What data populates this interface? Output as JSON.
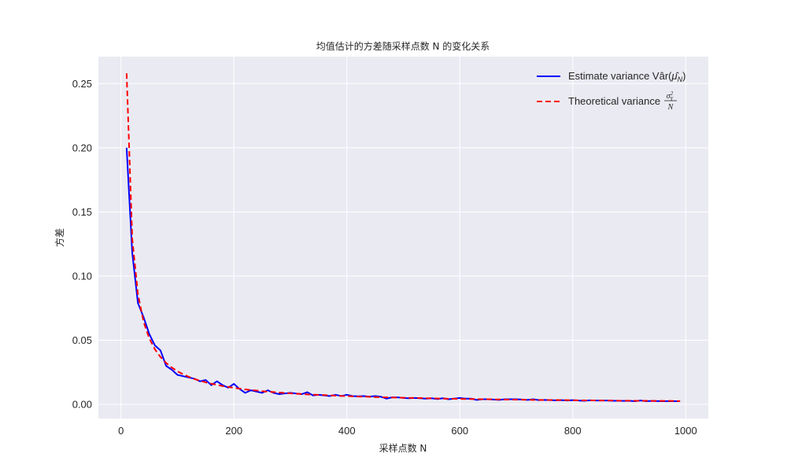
{
  "chart_data": {
    "type": "line",
    "title": "均值估计的方差随采样点数 N 的变化关系",
    "xlabel": "采样点数 N",
    "ylabel": "方差",
    "xlim": [
      -40,
      1040
    ],
    "ylim": [
      -0.011,
      0.271
    ],
    "x_ticks": [
      0,
      200,
      400,
      600,
      800,
      1000
    ],
    "x_tick_labels": [
      "0",
      "200",
      "400",
      "600",
      "800",
      "1000"
    ],
    "y_ticks": [
      0.0,
      0.05,
      0.1,
      0.15,
      0.2,
      0.25
    ],
    "y_tick_labels": [
      "0.00",
      "0.05",
      "0.10",
      "0.15",
      "0.20",
      "0.25"
    ],
    "grid": true,
    "legend_position": "top-right",
    "colors": {
      "background": "#eaeaf2",
      "grid": "#ffffff",
      "estimate": "#0000ff",
      "theoretical": "#ff0000"
    },
    "series": [
      {
        "name": "Estimate variance Var̂(μ̂_N)",
        "style": "solid",
        "color": "#0000ff",
        "x": [
          10,
          20,
          30,
          40,
          50,
          60,
          70,
          80,
          90,
          100,
          110,
          120,
          130,
          140,
          150,
          160,
          170,
          180,
          190,
          200,
          210,
          220,
          230,
          240,
          250,
          260,
          270,
          280,
          290,
          300,
          310,
          320,
          330,
          340,
          350,
          360,
          370,
          380,
          390,
          400,
          410,
          420,
          430,
          440,
          450,
          460,
          470,
          480,
          490,
          500,
          510,
          520,
          530,
          540,
          550,
          560,
          570,
          580,
          590,
          600,
          610,
          620,
          630,
          640,
          650,
          660,
          670,
          680,
          690,
          700,
          710,
          720,
          730,
          740,
          750,
          760,
          770,
          780,
          790,
          800,
          810,
          820,
          830,
          840,
          850,
          860,
          870,
          880,
          890,
          900,
          910,
          920,
          930,
          940,
          950,
          960,
          970,
          980,
          990
        ],
        "y": [
          0.2,
          0.118,
          0.079,
          0.068,
          0.055,
          0.046,
          0.042,
          0.03,
          0.027,
          0.023,
          0.022,
          0.021,
          0.02,
          0.018,
          0.019,
          0.015,
          0.018,
          0.015,
          0.013,
          0.016,
          0.012,
          0.009,
          0.011,
          0.01,
          0.009,
          0.011,
          0.009,
          0.008,
          0.0085,
          0.009,
          0.0085,
          0.008,
          0.0095,
          0.007,
          0.0075,
          0.007,
          0.0065,
          0.0075,
          0.0065,
          0.0075,
          0.0065,
          0.0063,
          0.0065,
          0.006,
          0.0065,
          0.006,
          0.0045,
          0.0055,
          0.0055,
          0.005,
          0.0048,
          0.005,
          0.0048,
          0.0045,
          0.0048,
          0.0042,
          0.0048,
          0.004,
          0.0045,
          0.005,
          0.0045,
          0.0045,
          0.0035,
          0.004,
          0.004,
          0.0038,
          0.0035,
          0.004,
          0.004,
          0.004,
          0.0038,
          0.0035,
          0.004,
          0.0033,
          0.0035,
          0.0033,
          0.0032,
          0.0033,
          0.003,
          0.0033,
          0.003,
          0.0028,
          0.0032,
          0.003,
          0.003,
          0.003,
          0.0028,
          0.0028,
          0.0027,
          0.0028,
          0.0025,
          0.003,
          0.0025,
          0.0027,
          0.0026,
          0.0025,
          0.0025,
          0.0025,
          0.0025
        ]
      },
      {
        "name": "Theoretical variance σ²_Y / N",
        "style": "dashed",
        "color": "#ff0000",
        "x": [
          10,
          20,
          30,
          40,
          50,
          60,
          70,
          80,
          90,
          100,
          110,
          120,
          130,
          140,
          150,
          160,
          170,
          180,
          190,
          200,
          210,
          220,
          230,
          240,
          250,
          260,
          270,
          280,
          290,
          300,
          310,
          320,
          330,
          340,
          350,
          360,
          370,
          380,
          390,
          400,
          410,
          420,
          430,
          440,
          450,
          460,
          470,
          480,
          490,
          500,
          510,
          520,
          530,
          540,
          550,
          560,
          570,
          580,
          590,
          600,
          610,
          620,
          630,
          640,
          650,
          660,
          670,
          680,
          690,
          700,
          710,
          720,
          730,
          740,
          750,
          760,
          770,
          780,
          790,
          800,
          810,
          820,
          830,
          840,
          850,
          860,
          870,
          880,
          890,
          900,
          910,
          920,
          930,
          940,
          950,
          960,
          970,
          980,
          990
        ],
        "y": [
          0.258,
          0.129,
          0.086,
          0.0645,
          0.0516,
          0.043,
          0.0369,
          0.0323,
          0.0287,
          0.0258,
          0.0235,
          0.0215,
          0.0198,
          0.0184,
          0.0172,
          0.0161,
          0.0152,
          0.0143,
          0.0136,
          0.0129,
          0.0123,
          0.0117,
          0.0112,
          0.0108,
          0.0103,
          0.0099,
          0.0096,
          0.0092,
          0.0089,
          0.0086,
          0.0083,
          0.0081,
          0.0078,
          0.0076,
          0.0074,
          0.0072,
          0.007,
          0.0068,
          0.0066,
          0.0065,
          0.0063,
          0.0061,
          0.006,
          0.0059,
          0.0057,
          0.0056,
          0.0055,
          0.0054,
          0.0053,
          0.0052,
          0.0051,
          0.005,
          0.0049,
          0.0048,
          0.0047,
          0.0046,
          0.0045,
          0.0044,
          0.0044,
          0.0043,
          0.0042,
          0.0042,
          0.0041,
          0.004,
          0.004,
          0.0039,
          0.0039,
          0.0038,
          0.0037,
          0.0037,
          0.0036,
          0.0036,
          0.0035,
          0.0035,
          0.0034,
          0.0034,
          0.0034,
          0.0033,
          0.0033,
          0.0032,
          0.0032,
          0.0031,
          0.0031,
          0.0031,
          0.003,
          0.003,
          0.003,
          0.0029,
          0.0029,
          0.0029,
          0.0028,
          0.0028,
          0.0028,
          0.0027,
          0.0027,
          0.0027,
          0.0027,
          0.0026,
          0.0026
        ]
      }
    ]
  },
  "legend": {
    "estimate": {
      "prefix": "Estimate variance V",
      "a_hat": "â",
      "r_open": "r(",
      "mu_hat": "μ̂",
      "sub_n": "N",
      "close": ")"
    },
    "theoretical": {
      "prefix": "Theoretical variance",
      "frac_num": "σ",
      "frac_num_sup": "2",
      "frac_num_sub": "Y",
      "frac_den": "N"
    }
  }
}
